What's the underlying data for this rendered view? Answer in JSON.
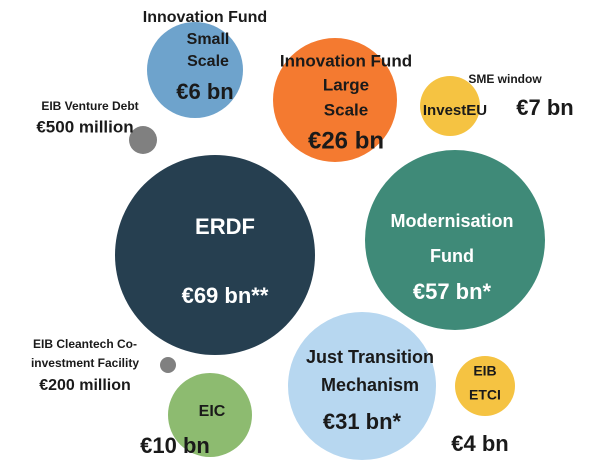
{
  "bubbles": [
    {
      "lines": [
        "ERDF"
      ],
      "value_label": "€69 bn**",
      "color": "#263f50"
    },
    {
      "lines": [
        "Modernisation",
        "Fund"
      ],
      "value_label": "€57 bn*",
      "color": "#3f8a78"
    },
    {
      "lines": [
        "Just Transition",
        "Mechanism"
      ],
      "value_label": "€31 bn*",
      "color": "#b7d7f0"
    },
    {
      "lines": [
        "Innovation Fund",
        "Large",
        "Scale"
      ],
      "value_label": "€26 bn",
      "color": "#f47a30"
    },
    {
      "lines": [
        "EIC"
      ],
      "value_label": "€10 bn",
      "color": "#8dbb70"
    },
    {
      "lines": [
        "SME window",
        "InvestEU"
      ],
      "value_label": "€7 bn",
      "color": "#f5c342"
    },
    {
      "lines": [
        "Innovation Fund",
        "Small",
        "Scale"
      ],
      "value_label": "€6 bn",
      "color": "#6ea3cc"
    },
    {
      "lines": [
        "EIB",
        "ETCI"
      ],
      "value_label": "€4 bn",
      "color": "#f5c342"
    },
    {
      "lines": [
        "EIB Venture Debt"
      ],
      "value_label": "€500 million",
      "color": "#808080"
    },
    {
      "lines": [
        "EIB Cleantech Co-",
        "investment Facility"
      ],
      "value_label": "€200 million",
      "color": "#808080"
    }
  ]
}
